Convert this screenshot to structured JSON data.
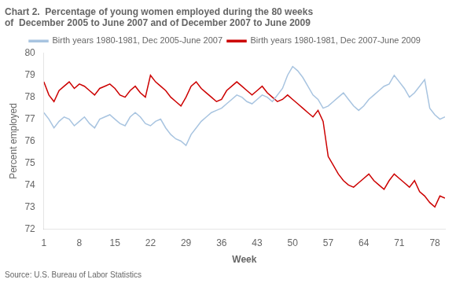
{
  "chart_data": {
    "type": "line",
    "title": [
      "Chart 2.  Percentage of young women employed during the 80 weeks",
      "of  December 2005 to June 2007 and of December 2007 to June 2009"
    ],
    "xlabel": "Week",
    "ylabel": "Percent employed",
    "annotations": [
      "Source: U.S. Bureau of Labor Statistics"
    ],
    "x": [
      1,
      2,
      3,
      4,
      5,
      6,
      7,
      8,
      9,
      10,
      11,
      12,
      13,
      14,
      15,
      16,
      17,
      18,
      19,
      20,
      21,
      22,
      23,
      24,
      25,
      26,
      27,
      28,
      29,
      30,
      31,
      32,
      33,
      34,
      35,
      36,
      37,
      38,
      39,
      40,
      41,
      42,
      43,
      44,
      45,
      46,
      47,
      48,
      49,
      50,
      51,
      52,
      53,
      54,
      55,
      56,
      57,
      58,
      59,
      60,
      61,
      62,
      63,
      64,
      65,
      66,
      67,
      68,
      69,
      70,
      71,
      72,
      73,
      74,
      75,
      76,
      77,
      78,
      79,
      80
    ],
    "series": [
      {
        "name": "Birth years 1980-1981, Dec 2005-June 2007",
        "color": "#a8c4e0",
        "values": [
          77.3,
          77.0,
          76.6,
          76.9,
          77.1,
          77.0,
          76.7,
          76.9,
          77.1,
          76.8,
          76.6,
          77.0,
          77.1,
          77.2,
          77.0,
          76.8,
          76.7,
          77.1,
          77.3,
          77.1,
          76.8,
          76.7,
          76.9,
          77.0,
          76.6,
          76.3,
          76.1,
          76.0,
          75.8,
          76.3,
          76.6,
          76.9,
          77.1,
          77.3,
          77.4,
          77.5,
          77.7,
          77.9,
          78.1,
          78.0,
          77.8,
          77.7,
          77.9,
          78.1,
          78.0,
          77.8,
          78.1,
          78.4,
          79.0,
          79.4,
          79.2,
          78.9,
          78.5,
          78.1,
          77.9,
          77.5,
          77.6,
          77.8,
          78.0,
          78.2,
          77.9,
          77.6,
          77.4,
          77.6,
          77.9,
          78.1,
          78.3,
          78.5,
          78.6,
          79.0,
          78.7,
          78.4,
          78.0,
          78.2,
          78.5,
          78.8,
          77.5,
          77.2,
          77.0,
          77.1
        ]
      },
      {
        "name": "Birth years 1980-1981, Dec 2007-June 2009",
        "color": "#cc0000",
        "values": [
          78.7,
          78.1,
          77.8,
          78.3,
          78.5,
          78.7,
          78.4,
          78.6,
          78.5,
          78.3,
          78.1,
          78.4,
          78.5,
          78.6,
          78.4,
          78.1,
          78.0,
          78.3,
          78.5,
          78.2,
          78.0,
          79.0,
          78.7,
          78.5,
          78.3,
          78.0,
          77.8,
          77.6,
          78.0,
          78.5,
          78.7,
          78.4,
          78.2,
          78.0,
          77.8,
          77.9,
          78.3,
          78.5,
          78.7,
          78.5,
          78.3,
          78.1,
          78.3,
          78.5,
          78.2,
          78.0,
          77.8,
          77.9,
          78.1,
          77.9,
          77.7,
          77.5,
          77.3,
          77.1,
          77.4,
          76.9,
          75.3,
          74.9,
          74.5,
          74.2,
          74.0,
          73.9,
          74.1,
          74.3,
          74.5,
          74.2,
          74.0,
          73.8,
          74.2,
          74.5,
          74.3,
          74.1,
          73.9,
          74.2,
          73.7,
          73.5,
          73.2,
          73.0,
          73.5,
          73.4
        ]
      }
    ],
    "xlim": [
      1,
      80
    ],
    "xticks": [
      1,
      8,
      15,
      22,
      29,
      36,
      43,
      50,
      57,
      64,
      71,
      78
    ],
    "ylim": [
      72,
      80
    ],
    "yticks": [
      72,
      73,
      74,
      75,
      76,
      77,
      78,
      79,
      80
    ],
    "grid": false,
    "legend": "top"
  }
}
